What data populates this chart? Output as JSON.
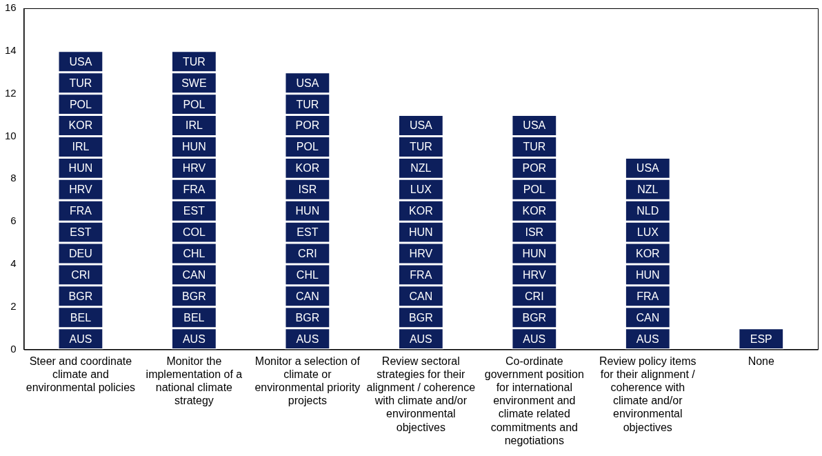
{
  "chart_data": {
    "type": "bar",
    "stacked": true,
    "grid": false,
    "legend": false,
    "categories": [
      "Steer and coordinate climate and environmental policies",
      "Monitor the implementation of a national climate strategy",
      "Monitor a selection of climate or environmental priority projects",
      "Review sectoral strategies for their alignment / coherence with climate and/or environmental objectives",
      "Co-ordinate government position for international environment and climate related commitments and negotiations",
      "Review policy items for their alignment / coherence with climate and/or environmental objectives",
      "None"
    ],
    "ylim": [
      0,
      16
    ],
    "yticks": [
      0,
      2,
      4,
      6,
      8,
      10,
      12,
      14,
      16
    ],
    "series": [
      {
        "color": "#0d1f5c",
        "values": [
          1,
          1,
          1,
          1,
          1,
          1,
          1
        ],
        "value_labels": [
          "AUS",
          "AUS",
          "AUS",
          "AUS",
          "AUS",
          "AUS",
          "ESP"
        ]
      },
      {
        "color": "#0d1f5c",
        "values": [
          1,
          1,
          1,
          1,
          1,
          1,
          null
        ],
        "value_labels": [
          "BEL",
          "BEL",
          "BGR",
          "BGR",
          "BGR",
          "CAN",
          null
        ]
      },
      {
        "color": "#0d1f5c",
        "values": [
          1,
          1,
          1,
          1,
          1,
          1,
          null
        ],
        "value_labels": [
          "BGR",
          "BGR",
          "CAN",
          "CAN",
          "CRI",
          "FRA",
          null
        ]
      },
      {
        "color": "#0d1f5c",
        "values": [
          1,
          1,
          1,
          1,
          1,
          1,
          null
        ],
        "value_labels": [
          "CRI",
          "CAN",
          "CHL",
          "FRA",
          "HRV",
          "HUN",
          null
        ]
      },
      {
        "color": "#0d1f5c",
        "values": [
          1,
          1,
          1,
          1,
          1,
          1,
          null
        ],
        "value_labels": [
          "DEU",
          "CHL",
          "CRI",
          "HRV",
          "HUN",
          "KOR",
          null
        ]
      },
      {
        "color": "#0d1f5c",
        "values": [
          1,
          1,
          1,
          1,
          1,
          1,
          null
        ],
        "value_labels": [
          "EST",
          "COL",
          "EST",
          "HUN",
          "ISR",
          "LUX",
          null
        ]
      },
      {
        "color": "#0d1f5c",
        "values": [
          1,
          1,
          1,
          1,
          1,
          1,
          null
        ],
        "value_labels": [
          "FRA",
          "EST",
          "HUN",
          "KOR",
          "KOR",
          "NLD",
          null
        ]
      },
      {
        "color": "#0d1f5c",
        "values": [
          1,
          1,
          1,
          1,
          1,
          1,
          null
        ],
        "value_labels": [
          "HRV",
          "FRA",
          "ISR",
          "LUX",
          "POL",
          "NZL",
          null
        ]
      },
      {
        "color": "#0d1f5c",
        "values": [
          1,
          1,
          1,
          1,
          1,
          1,
          null
        ],
        "value_labels": [
          "HUN",
          "HRV",
          "KOR",
          "NZL",
          "POR",
          "USA",
          null
        ]
      },
      {
        "color": "#0d1f5c",
        "values": [
          1,
          1,
          1,
          1,
          1,
          null,
          null
        ],
        "value_labels": [
          "IRL",
          "HUN",
          "POL",
          "TUR",
          "TUR",
          null,
          null
        ]
      },
      {
        "color": "#0d1f5c",
        "values": [
          1,
          1,
          1,
          1,
          1,
          null,
          null
        ],
        "value_labels": [
          "KOR",
          "IRL",
          "POR",
          "USA",
          "USA",
          null,
          null
        ]
      },
      {
        "color": "#0d1f5c",
        "values": [
          1,
          1,
          1,
          null,
          null,
          null,
          null
        ],
        "value_labels": [
          "POL",
          "POL",
          "TUR",
          null,
          null,
          null,
          null
        ]
      },
      {
        "color": "#0d1f5c",
        "values": [
          1,
          1,
          1,
          null,
          null,
          null,
          null
        ],
        "value_labels": [
          "TUR",
          "SWE",
          "USA",
          null,
          null,
          null,
          null
        ]
      },
      {
        "color": "#0d1f5c",
        "values": [
          1,
          1,
          null,
          null,
          null,
          null,
          null
        ],
        "value_labels": [
          "USA",
          "TUR",
          null,
          null,
          null,
          null,
          null
        ]
      }
    ]
  }
}
